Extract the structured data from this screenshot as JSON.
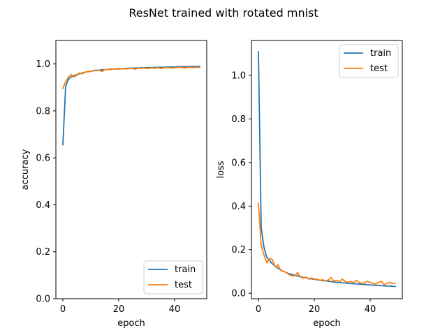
{
  "figure": {
    "title": "ResNet trained with rotated mnist"
  },
  "colors": {
    "train": "#1f77b4",
    "test": "#ff7f0e"
  },
  "chart_data": [
    {
      "type": "line",
      "xlabel": "epoch",
      "ylabel": "accuracy",
      "xlim": [
        -2.5,
        51.5
      ],
      "ylim": [
        0.0,
        1.1
      ],
      "xticks": [
        "0",
        "20",
        "40"
      ],
      "xtick_values": [
        0,
        20,
        40
      ],
      "yticks": [
        "0.0",
        "0.2",
        "0.4",
        "0.6",
        "0.8",
        "1.0"
      ],
      "ytick_values": [
        0.0,
        0.2,
        0.4,
        0.6,
        0.8,
        1.0
      ],
      "legend": "lower-right",
      "grid": false,
      "series": [
        {
          "name": "train",
          "color": "#1f77b4",
          "x": [
            0,
            1,
            2,
            3,
            4,
            5,
            6,
            7,
            8,
            9,
            10,
            11,
            12,
            13,
            14,
            15,
            16,
            17,
            18,
            19,
            20,
            21,
            22,
            23,
            24,
            25,
            26,
            27,
            28,
            29,
            30,
            31,
            32,
            33,
            34,
            35,
            36,
            37,
            38,
            39,
            40,
            41,
            42,
            43,
            44,
            45,
            46,
            47,
            48,
            49
          ],
          "values": [
            0.655,
            0.905,
            0.935,
            0.945,
            0.95,
            0.955,
            0.958,
            0.962,
            0.965,
            0.967,
            0.969,
            0.971,
            0.972,
            0.974,
            0.975,
            0.976,
            0.977,
            0.978,
            0.978,
            0.979,
            0.98,
            0.98,
            0.981,
            0.981,
            0.982,
            0.982,
            0.983,
            0.983,
            0.984,
            0.984,
            0.984,
            0.985,
            0.985,
            0.985,
            0.986,
            0.986,
            0.986,
            0.987,
            0.987,
            0.987,
            0.987,
            0.988,
            0.988,
            0.988,
            0.988,
            0.989,
            0.989,
            0.989,
            0.989,
            0.99
          ]
        },
        {
          "name": "test",
          "color": "#ff7f0e",
          "x": [
            0,
            1,
            2,
            3,
            4,
            5,
            6,
            7,
            8,
            9,
            10,
            11,
            12,
            13,
            14,
            15,
            16,
            17,
            18,
            19,
            20,
            21,
            22,
            23,
            24,
            25,
            26,
            27,
            28,
            29,
            30,
            31,
            32,
            33,
            34,
            35,
            36,
            37,
            38,
            39,
            40,
            41,
            42,
            43,
            44,
            45,
            46,
            47,
            48,
            49
          ],
          "values": [
            0.895,
            0.925,
            0.945,
            0.955,
            0.945,
            0.952,
            0.962,
            0.958,
            0.966,
            0.967,
            0.968,
            0.972,
            0.974,
            0.973,
            0.968,
            0.976,
            0.977,
            0.975,
            0.978,
            0.978,
            0.978,
            0.979,
            0.98,
            0.979,
            0.981,
            0.98,
            0.978,
            0.982,
            0.981,
            0.983,
            0.98,
            0.982,
            0.983,
            0.982,
            0.984,
            0.981,
            0.983,
            0.985,
            0.984,
            0.983,
            0.984,
            0.985,
            0.986,
            0.984,
            0.983,
            0.986,
            0.985,
            0.984,
            0.986,
            0.985
          ]
        }
      ]
    },
    {
      "type": "line",
      "xlabel": "epoch",
      "ylabel": "loss",
      "xlim": [
        -2.5,
        51.5
      ],
      "ylim": [
        -0.025,
        1.16
      ],
      "xticks": [
        "0",
        "20",
        "40"
      ],
      "xtick_values": [
        0,
        20,
        40
      ],
      "yticks": [
        "0.0",
        "0.2",
        "0.4",
        "0.6",
        "0.8",
        "1.0"
      ],
      "ytick_values": [
        0.0,
        0.2,
        0.4,
        0.6,
        0.8,
        1.0
      ],
      "legend": "upper-right",
      "grid": false,
      "series": [
        {
          "name": "train",
          "color": "#1f77b4",
          "x": [
            0,
            1,
            2,
            3,
            4,
            5,
            6,
            7,
            8,
            9,
            10,
            11,
            12,
            13,
            14,
            15,
            16,
            17,
            18,
            19,
            20,
            21,
            22,
            23,
            24,
            25,
            26,
            27,
            28,
            29,
            30,
            31,
            32,
            33,
            34,
            35,
            36,
            37,
            38,
            39,
            40,
            41,
            42,
            43,
            44,
            45,
            46,
            47,
            48,
            49
          ],
          "values": [
            1.11,
            0.3,
            0.21,
            0.165,
            0.15,
            0.135,
            0.125,
            0.115,
            0.107,
            0.1,
            0.095,
            0.09,
            0.086,
            0.082,
            0.079,
            0.076,
            0.073,
            0.071,
            0.068,
            0.066,
            0.064,
            0.062,
            0.06,
            0.058,
            0.057,
            0.055,
            0.054,
            0.052,
            0.05,
            0.049,
            0.048,
            0.047,
            0.046,
            0.045,
            0.044,
            0.043,
            0.042,
            0.041,
            0.04,
            0.039,
            0.038,
            0.037,
            0.036,
            0.036,
            0.035,
            0.034,
            0.033,
            0.033,
            0.032,
            0.031
          ]
        },
        {
          "name": "test",
          "color": "#ff7f0e",
          "x": [
            0,
            1,
            2,
            3,
            4,
            5,
            6,
            7,
            8,
            9,
            10,
            11,
            12,
            13,
            14,
            15,
            16,
            17,
            18,
            19,
            20,
            21,
            22,
            23,
            24,
            25,
            26,
            27,
            28,
            29,
            30,
            31,
            32,
            33,
            34,
            35,
            36,
            37,
            38,
            39,
            40,
            41,
            42,
            43,
            44,
            45,
            46,
            47,
            48,
            49
          ],
          "values": [
            0.415,
            0.22,
            0.175,
            0.14,
            0.16,
            0.155,
            0.12,
            0.13,
            0.105,
            0.1,
            0.095,
            0.085,
            0.08,
            0.08,
            0.095,
            0.075,
            0.07,
            0.075,
            0.065,
            0.07,
            0.065,
            0.065,
            0.06,
            0.062,
            0.058,
            0.06,
            0.072,
            0.055,
            0.06,
            0.052,
            0.065,
            0.055,
            0.05,
            0.055,
            0.048,
            0.06,
            0.05,
            0.045,
            0.048,
            0.055,
            0.05,
            0.045,
            0.042,
            0.05,
            0.055,
            0.04,
            0.045,
            0.05,
            0.045,
            0.047
          ]
        }
      ]
    }
  ]
}
